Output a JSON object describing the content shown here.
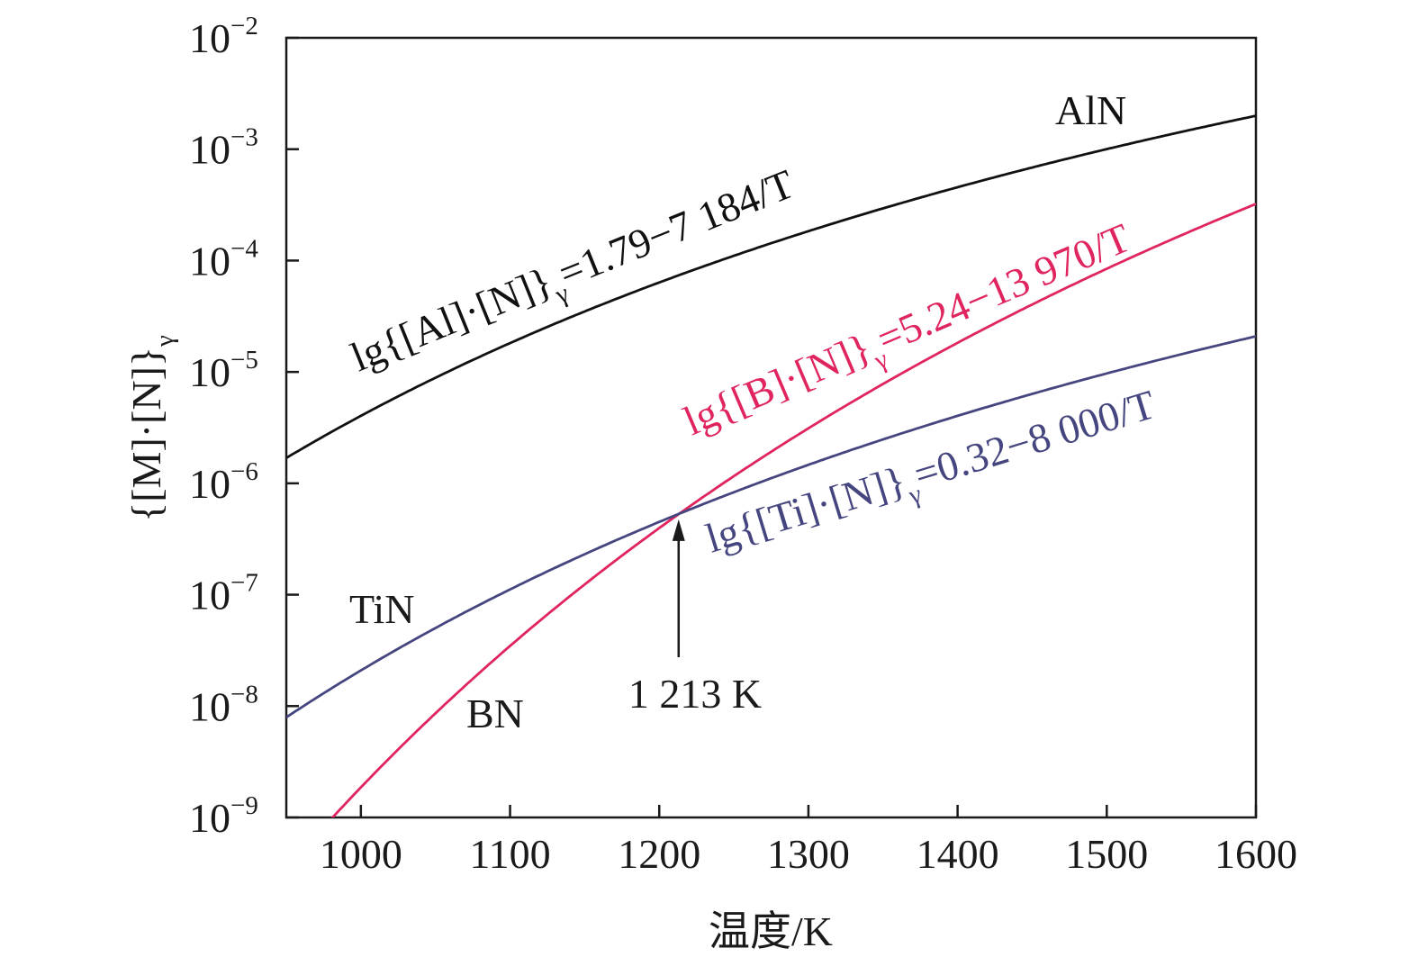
{
  "chart_data": {
    "type": "line",
    "xlabel": "温度/K",
    "ylabel": "{[M]·[N]}",
    "ylabel_subscript": "γ",
    "xlim": [
      950,
      1600
    ],
    "ylim": [
      1e-09,
      0.01
    ],
    "y_scale": "log",
    "grid": false,
    "x_ticks": [
      "1000",
      "1100",
      "1200",
      "1300",
      "1400",
      "1500",
      "1600"
    ],
    "y_ticks": [
      {
        "base": "10",
        "exp": "−2"
      },
      {
        "base": "10",
        "exp": "−3"
      },
      {
        "base": "10",
        "exp": "−4"
      },
      {
        "base": "10",
        "exp": "−5"
      },
      {
        "base": "10",
        "exp": "−6"
      },
      {
        "base": "10",
        "exp": "−7"
      },
      {
        "base": "10",
        "exp": "−8"
      },
      {
        "base": "10",
        "exp": "−9"
      }
    ],
    "series": [
      {
        "name": "AlN",
        "a": 1.79,
        "b": 7184,
        "color": "#111111",
        "formula": {
          "pre": "lg{[Al]·[N]}",
          "sub": "γ",
          "post": "=1.79−7 184/T"
        }
      },
      {
        "name": "BN",
        "a": 5.24,
        "b": 13970,
        "color": "#e0245e",
        "formula": {
          "pre": "lg{[B]·[N]}",
          "sub": "γ",
          "post": "=5.24−13 970/T"
        }
      },
      {
        "name": "TiN",
        "a": 0.32,
        "b": 8000,
        "color": "#45467f",
        "formula": {
          "pre": "lg{[Ti]·[N]}",
          "sub": "γ",
          "post": "=0.32−8 000/T"
        }
      }
    ],
    "annotations": [
      {
        "text": "1 213 K",
        "x": 1213
      }
    ]
  }
}
